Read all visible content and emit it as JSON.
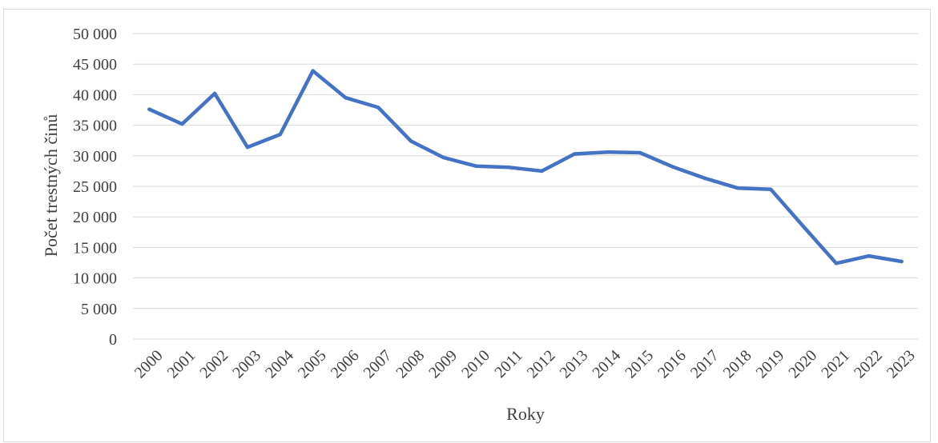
{
  "chart_data": {
    "type": "line",
    "title": "",
    "xlabel": "Roky",
    "ylabel": "Počet trestných činů",
    "ylim": [
      0,
      50000
    ],
    "y_ticks": [
      "0",
      "5 000",
      "10 000",
      "15 000",
      "20 000",
      "25 000",
      "30 000",
      "35 000",
      "40 000",
      "45 000",
      "50 000"
    ],
    "categories": [
      "2000",
      "2001",
      "2002",
      "2003",
      "2004",
      "2005",
      "2006",
      "2007",
      "2008",
      "2009",
      "2010",
      "2011",
      "2012",
      "2013",
      "2014",
      "2015",
      "2016",
      "2017",
      "2018",
      "2019",
      "2020",
      "2021",
      "2022",
      "2023"
    ],
    "series": [
      {
        "color": "#4472c4",
        "values": [
          37600,
          35200,
          40200,
          31400,
          33500,
          43900,
          39500,
          37900,
          32400,
          29700,
          28300,
          28100,
          27500,
          30300,
          30600,
          30500,
          28200,
          26300,
          24700,
          24500,
          18400,
          12400,
          13600,
          12700
        ]
      }
    ],
    "grid": true,
    "legend": "none"
  }
}
